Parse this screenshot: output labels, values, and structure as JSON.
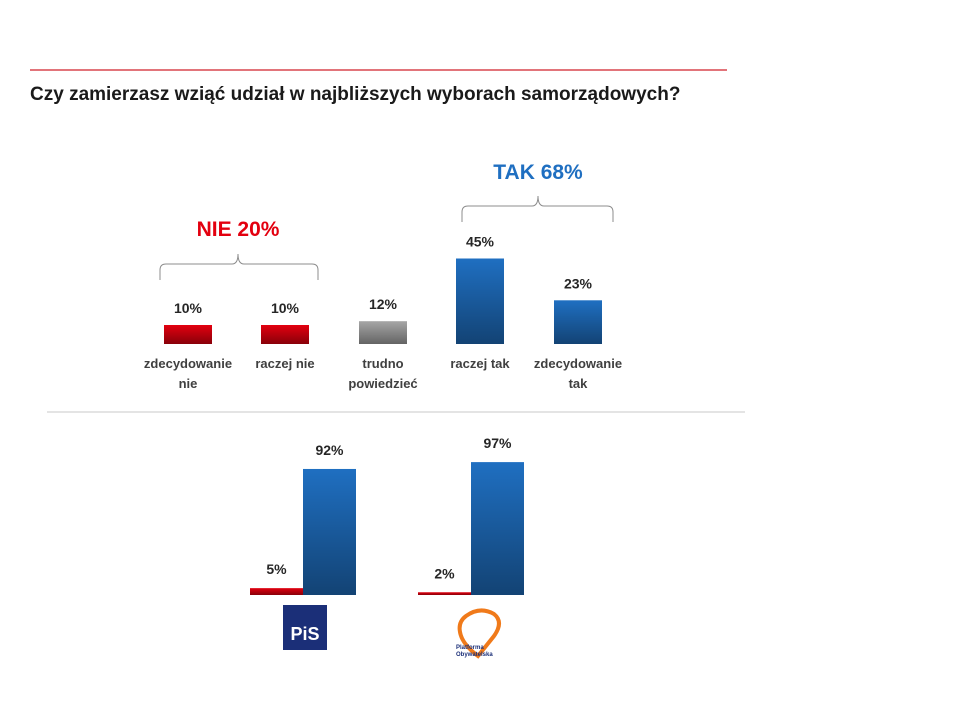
{
  "chart_data": [
    {
      "type": "bar",
      "title": "Czy zamierzasz wziąć udział w najbliższych wyborach samorządowych?",
      "categories": [
        "zdecydowanie nie",
        "raczej nie",
        "trudno powiedzieć",
        "raczej tak",
        "zdecydowanie tak"
      ],
      "values": [
        10,
        10,
        12,
        45,
        23
      ],
      "value_labels": [
        "10%",
        "10%",
        "12%",
        "45%",
        "23%"
      ],
      "colors": [
        "#e3000f",
        "#e3000f",
        "#a6a6a6",
        "#1f6fc1",
        "#1f6fc1"
      ],
      "annotations": [
        {
          "text": "NIE 20%",
          "color": "#e3000f"
        },
        {
          "text": "TAK 68%",
          "color": "#1f6fc1"
        }
      ]
    },
    {
      "type": "grouped-bar",
      "categories": [
        "PiS",
        "Platforma Obywatelska"
      ],
      "series": [
        {
          "color": "#e3000f",
          "values": [
            5,
            2
          ],
          "value_labels": [
            "5%",
            "2%"
          ]
        },
        {
          "color": "#1f6fc1",
          "values": [
            92,
            97
          ],
          "value_labels": [
            "92%",
            "97%"
          ]
        }
      ]
    }
  ]
}
